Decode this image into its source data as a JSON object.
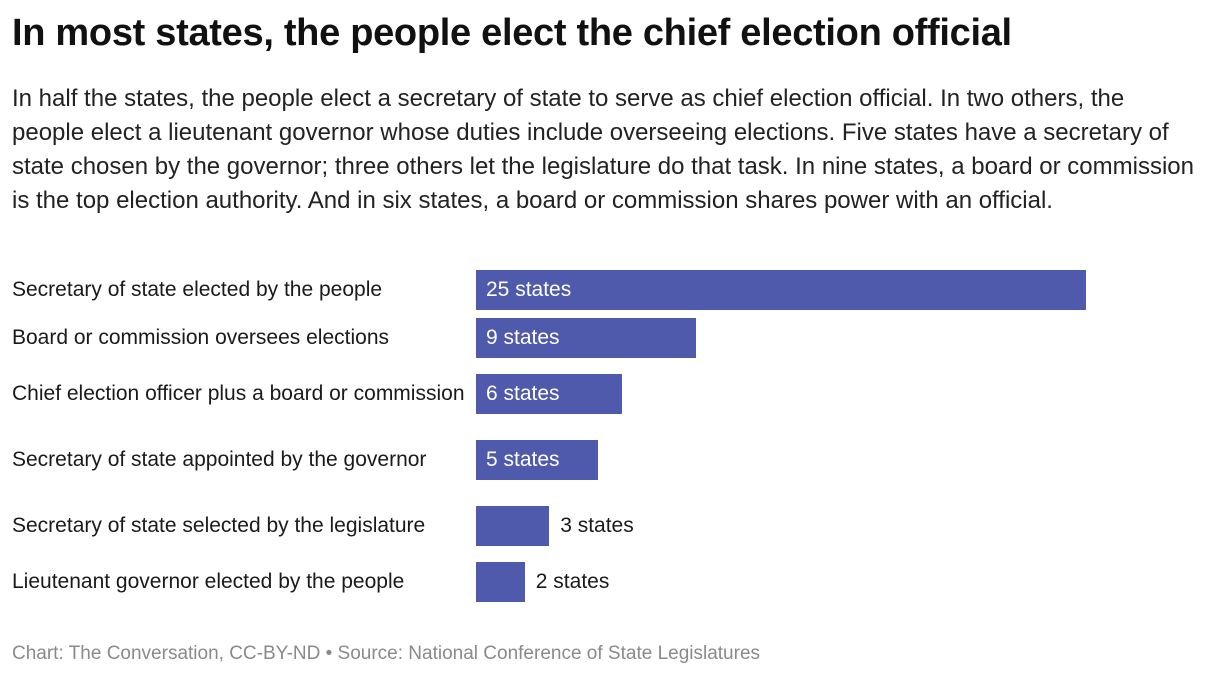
{
  "chart_data": {
    "type": "bar",
    "orientation": "horizontal",
    "title": "In most states, the people elect the chief election official",
    "subtitle": "In half the states, the people elect a secretary of state to serve as chief election official. In two others, the people elect a lieutenant governor whose duties include overseeing elections. Five states have a secretary of state chosen by the governor; three others let the legislature do that task. In nine states, a board or commission is the top election authority. And in six states, a board or commission shares power with an official.",
    "categories": [
      "Secretary of state elected by the people",
      "Board or commission oversees elections",
      "Chief election officer plus a board or commission",
      "Secretary of state appointed by the governor",
      "Secretary of state selected by the legislature",
      "Lieutenant governor elected by the people"
    ],
    "values": [
      25,
      9,
      6,
      5,
      3,
      2
    ],
    "data_labels": [
      "25 states",
      "9 states",
      "6 states",
      "5 states",
      "3 states",
      "2 states"
    ],
    "xlim": [
      0,
      25
    ],
    "grid": false,
    "color": "#4f5aad",
    "footer": "Chart: The Conversation, CC-BY-ND • Source: National Conference of State Legislatures"
  }
}
